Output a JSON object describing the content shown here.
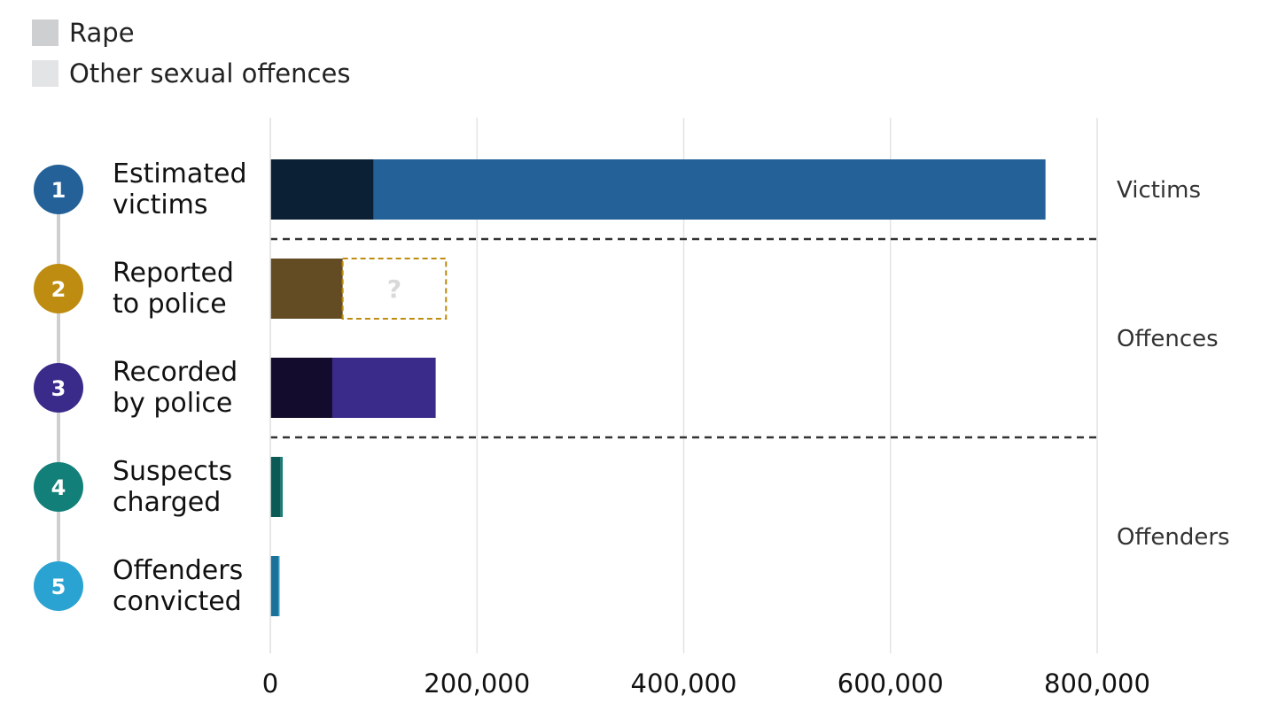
{
  "legend": [
    {
      "label": "Rape",
      "color": "#cdcfd1"
    },
    {
      "label": "Other sexual offences",
      "color": "#e3e4e6"
    }
  ],
  "chart_data": {
    "type": "bar",
    "orientation": "horizontal",
    "stacked": true,
    "categories": [
      {
        "number": "1",
        "lines": [
          "Estimated",
          "victims"
        ],
        "circle_color": "#236198"
      },
      {
        "number": "2",
        "lines": [
          "Reported",
          "to police"
        ],
        "circle_color": "#bd8c10"
      },
      {
        "number": "3",
        "lines": [
          "Recorded",
          "by police"
        ],
        "circle_color": "#3a2a8a"
      },
      {
        "number": "4",
        "lines": [
          "Suspects",
          "charged"
        ],
        "circle_color": "#127f79"
      },
      {
        "number": "5",
        "lines": [
          "Offenders",
          "convicted"
        ],
        "circle_color": "#2aa3d2"
      }
    ],
    "series": [
      {
        "name": "Rape",
        "values": [
          100000,
          70000,
          60000,
          10000,
          8000
        ],
        "colors": [
          "#0b2035",
          "#634c23",
          "#140c2d",
          "#0b5a55",
          "#1c7199"
        ]
      },
      {
        "name": "Other sexual offences",
        "values": [
          650000,
          100000,
          100000,
          2000,
          1000
        ],
        "colors": [
          "#236198",
          "#bd8c10",
          "#3a2a8a",
          "#127f79",
          "#2aa3d2"
        ],
        "unknown": [
          false,
          true,
          false,
          false,
          false
        ],
        "unknown_label": "?"
      }
    ],
    "x_ticks": [
      0,
      200000,
      400000,
      600000,
      800000
    ],
    "x_tick_labels": [
      "0",
      "200,000",
      "400,000",
      "600,000",
      "800,000"
    ],
    "xlim": [
      0,
      800000
    ],
    "grid": true,
    "groups": [
      {
        "label": "Victims",
        "categories": [
          0
        ]
      },
      {
        "label": "Offences",
        "categories": [
          1,
          2
        ]
      },
      {
        "label": "Offenders",
        "categories": [
          3,
          4
        ]
      }
    ]
  }
}
